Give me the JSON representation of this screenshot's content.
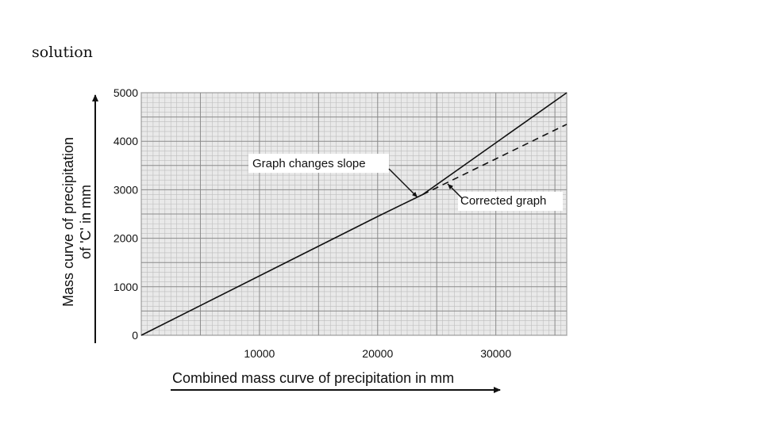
{
  "slide": {
    "heading": "solution"
  },
  "chart_data": {
    "type": "line",
    "title": "",
    "xlabel": "Combined mass curve of precipitation in mm",
    "ylabel_line1": "Mass curve of precipitation",
    "ylabel_line2": "of 'C' in mm",
    "xlim": [
      0,
      36000
    ],
    "ylim": [
      0,
      5000
    ],
    "x_ticks": [
      10000,
      20000,
      30000
    ],
    "x_tick_labels": [
      "10000",
      "20000",
      "30000"
    ],
    "y_ticks": [
      0,
      1000,
      2000,
      3000,
      4000,
      5000
    ],
    "y_tick_labels": [
      "0",
      "1000",
      "2000",
      "3000",
      "4000",
      "5000"
    ],
    "grid": true,
    "series": [
      {
        "name": "Mass curve",
        "style": "solid",
        "points": [
          [
            0,
            0
          ],
          [
            20000,
            2450
          ],
          [
            23800,
            2900
          ],
          [
            36000,
            5000
          ]
        ]
      },
      {
        "name": "Corrected graph",
        "style": "dashed",
        "points": [
          [
            23800,
            2900
          ],
          [
            36000,
            4350
          ]
        ]
      }
    ],
    "annotations": [
      {
        "text": "Graph changes slope",
        "x": 23800,
        "y": 2900
      },
      {
        "text": "Corrected graph",
        "x": 25500,
        "y": 3150
      }
    ]
  }
}
